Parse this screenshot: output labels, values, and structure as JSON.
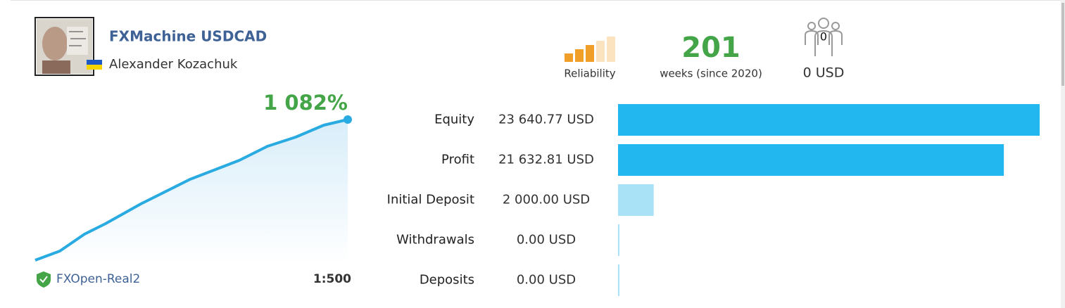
{
  "header": {
    "title": "FXMachine USDCAD",
    "author": "Alexander Kozachuk"
  },
  "stats": {
    "reliability_label": "Reliability",
    "weeks": "201",
    "weeks_label": "weeks (since 2020)",
    "subscribers": "0",
    "subscribers_funds": "0 USD"
  },
  "growth": "1 082%",
  "broker": "FXOpen-Real2",
  "leverage": "1:500",
  "balance": {
    "rows": [
      {
        "name": "Equity",
        "value": 23640.77,
        "label": "23 640.77 USD",
        "color": "#22b7ee"
      },
      {
        "name": "Profit",
        "value": 21632.81,
        "label": "21 632.81 USD",
        "color": "#22b7ee"
      },
      {
        "name": "Initial Deposit",
        "value": 2000.0,
        "label": "2 000.00 USD",
        "color": "#a9e1f7"
      },
      {
        "name": "Withdrawals",
        "value": 0.0,
        "label": "0.00 USD",
        "color": "#a9e1f7"
      },
      {
        "name": "Deposits",
        "value": 0.0,
        "label": "0.00 USD",
        "color": "#a9e1f7"
      }
    ]
  }
}
